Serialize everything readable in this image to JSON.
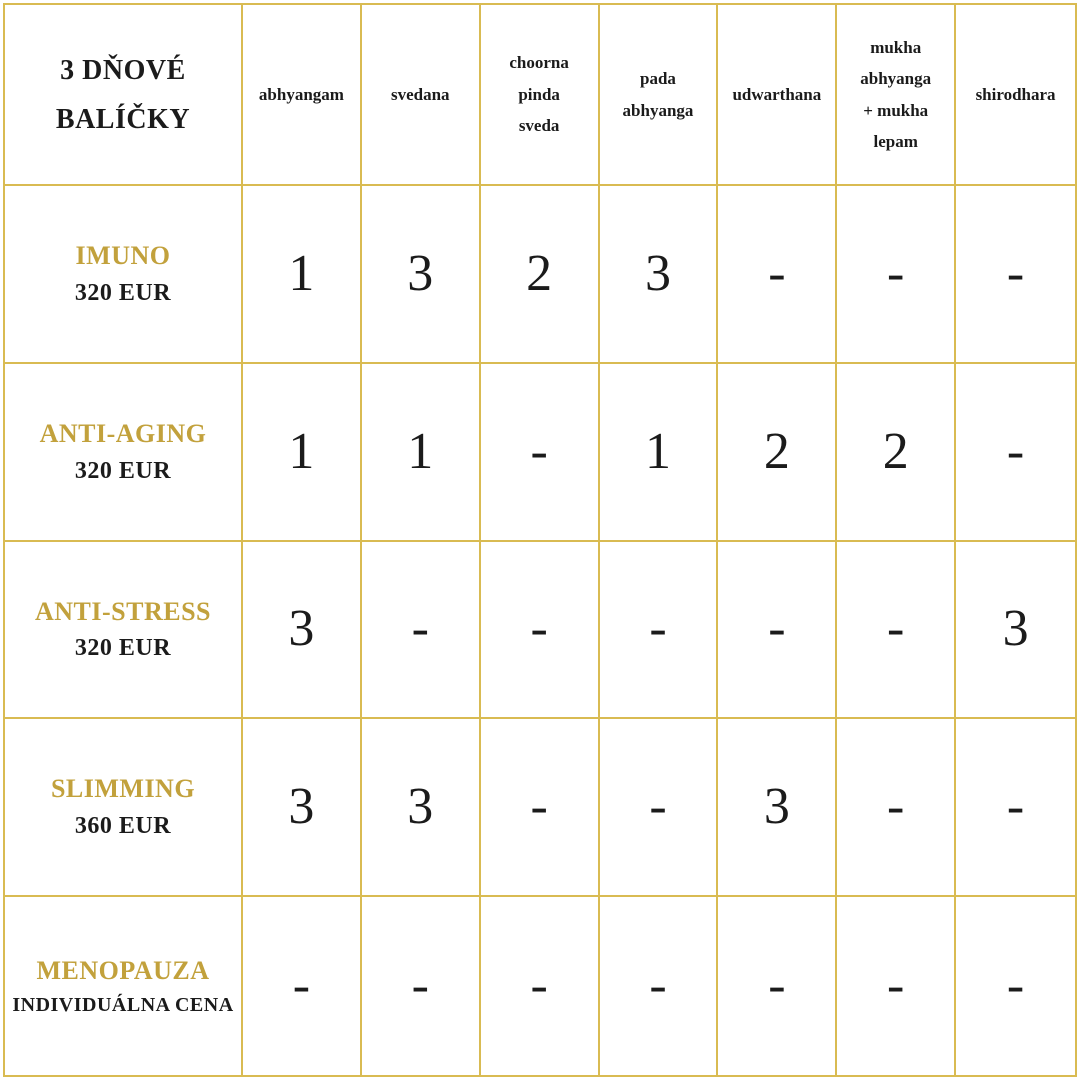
{
  "chart_data": {
    "type": "table",
    "title": "3 DŇOVÉ\nBALÍČKY",
    "columns": [
      "abhyangam",
      "svedana",
      "choorna\npinda\nsveda",
      "pada\nabhyanga",
      "udwarthana",
      "mukha\nabhyanga\n+ mukha\nlepam",
      "shirodhara"
    ],
    "rows": [
      {
        "name": "IMUNO",
        "price": "320 EUR",
        "values": [
          "1",
          "3",
          "2",
          "3",
          "-",
          "-",
          "-"
        ]
      },
      {
        "name": "ANTI-AGING",
        "price": "320 EUR",
        "values": [
          "1",
          "1",
          "-",
          "1",
          "2",
          "2",
          "-"
        ]
      },
      {
        "name": "ANTI-STRESS",
        "price": "320 EUR",
        "values": [
          "3",
          "-",
          "-",
          "-",
          "-",
          "-",
          "3"
        ]
      },
      {
        "name": "SLIMMING",
        "price": "360 EUR",
        "values": [
          "3",
          "3",
          "-",
          "-",
          "3",
          "-",
          "-"
        ]
      },
      {
        "name": "MENOPAUZA",
        "price": "INDIVIDUÁLNA CENA",
        "values": [
          "-",
          "-",
          "-",
          "-",
          "-",
          "-",
          "-"
        ]
      }
    ]
  },
  "colors": {
    "gold_text": "#C2A13C",
    "gold_border": "#D9BB52",
    "text_dark": "#1B1B1B"
  }
}
